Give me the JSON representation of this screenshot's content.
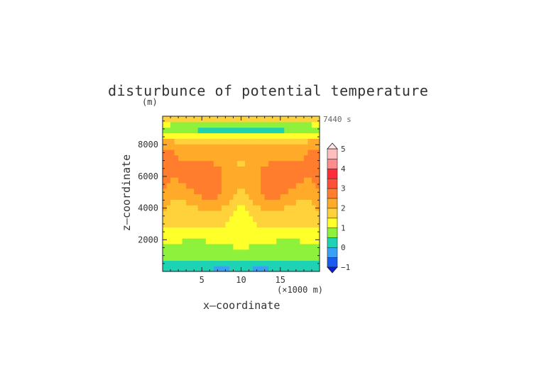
{
  "chart_data": {
    "type": "heatmap",
    "title": "disturbunce of potential temperature",
    "y_unit_label": "(m)",
    "time_label": "7440 s",
    "xlabel": "x—coordinate",
    "ylabel": "z—coordinate",
    "x_unit_label": "(×1000 m)",
    "xlim": [
      0,
      20
    ],
    "ylim": [
      0,
      9800
    ],
    "x_ticks": [
      "5",
      "10",
      "15"
    ],
    "x_tick_values": [
      5,
      10,
      15
    ],
    "y_ticks": [
      "2000",
      "4000",
      "6000",
      "8000"
    ],
    "y_tick_values": [
      2000,
      4000,
      6000,
      8000
    ],
    "colorbar": {
      "levels": [
        -1,
        -0.5,
        0,
        0.5,
        1,
        1.5,
        2,
        2.5,
        3,
        3.5,
        4,
        4.5,
        5
      ],
      "tick_labels": [
        "−1",
        "0",
        "1",
        "2",
        "3",
        "4",
        "5"
      ],
      "tick_values": [
        -1,
        0,
        1,
        2,
        3,
        4,
        5
      ],
      "colors": [
        "#1a5cf0",
        "#3aa0f5",
        "#1ed2b4",
        "#8ef23c",
        "#ffff2a",
        "#ffd23c",
        "#ffaa28",
        "#ff7d2d",
        "#ff5037",
        "#ff2d3c",
        "#ff8c8c",
        "#ffbebe"
      ],
      "extend_min_color": "#0a1ed2",
      "extend_max_color": "#ffe6e6"
    },
    "field": {
      "description_rows_bottom_to_top": "z levels from 0 to 9800 m, x from 0 to 20 km, values in K",
      "nx": 40,
      "nz": 28
    }
  }
}
